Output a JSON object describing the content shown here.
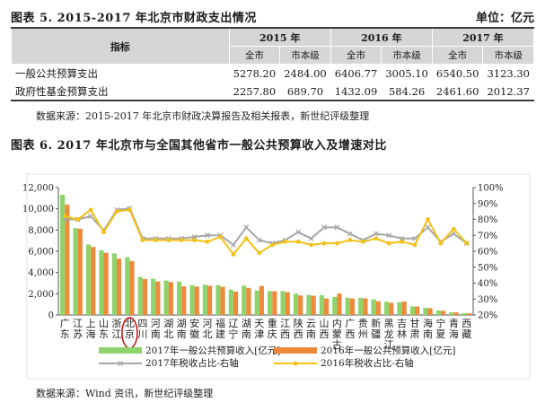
{
  "table1": {
    "title": "图表 5. 2015-2017 年北京市财政支出情况",
    "unit": "单位：亿元",
    "header_indicator": "指标",
    "years": [
      "2015 年",
      "2016 年",
      "2017 年"
    ],
    "sub_headers": [
      "全市",
      "市本级"
    ],
    "rows": [
      {
        "label": "一般公共预算支出",
        "values": [
          "5278.20",
          "2484.00",
          "6406.77",
          "3005.10",
          "6540.50",
          "3123.30"
        ]
      },
      {
        "label": "政府性基金预算支出",
        "values": [
          "2257.80",
          "689.70",
          "1432.09",
          "584.26",
          "2461.60",
          "2012.37"
        ]
      }
    ],
    "source": "数据来源：2015-2017 年北京市财政决算报告及相关报表，新世纪评级整理"
  },
  "figure6": {
    "title": "图表 6. 2017 年北京市与全国其他省市一般公共预算收入及增速对比",
    "source": "数据来源：Wind 资讯，新世纪评级整理"
  },
  "chart_data": {
    "type": "bar",
    "categories": [
      "广东",
      "江苏",
      "上海",
      "山东",
      "浙江",
      "北京",
      "四川",
      "河南",
      "湖北",
      "湖南",
      "安徽",
      "河北",
      "福建",
      "辽宁",
      "湖南",
      "天津",
      "重庆",
      "江西",
      "陕西",
      "云南",
      "山西",
      "内蒙古",
      "广西",
      "贵州",
      "新疆",
      "黑龙江",
      "吉林",
      "甘肃",
      "海南",
      "宁夏",
      "青海",
      "西藏"
    ],
    "category_chars": [
      [
        "广",
        "东"
      ],
      [
        "江",
        "苏"
      ],
      [
        "上",
        "海"
      ],
      [
        "山",
        "东"
      ],
      [
        "浙",
        "江"
      ],
      [
        "北",
        "京"
      ],
      [
        "四",
        "川"
      ],
      [
        "河",
        "南"
      ],
      [
        "湖",
        "北"
      ],
      [
        "湖",
        "南"
      ],
      [
        "安",
        "徽"
      ],
      [
        "河",
        "北"
      ],
      [
        "福",
        "建"
      ],
      [
        "辽",
        "宁"
      ],
      [
        "湖",
        "南"
      ],
      [
        "天",
        "津"
      ],
      [
        "重",
        "庆"
      ],
      [
        "江",
        "西"
      ],
      [
        "陕",
        "西"
      ],
      [
        "云",
        "南"
      ],
      [
        "山",
        "西"
      ],
      [
        "内",
        "蒙",
        "古"
      ],
      [
        "广",
        "西"
      ],
      [
        "贵",
        "州"
      ],
      [
        "新",
        "疆"
      ],
      [
        "黑",
        "龙",
        "江"
      ],
      [
        "吉",
        "林"
      ],
      [
        "甘",
        "肃"
      ],
      [
        "海",
        "南"
      ],
      [
        "宁",
        "夏"
      ],
      [
        "青",
        "海"
      ],
      [
        "西",
        "藏"
      ]
    ],
    "highlight_index": 5,
    "series": [
      {
        "name": "2017年一般公共预算收入[亿元]",
        "kind": "bar",
        "axis": "left",
        "color": "#8ed36b",
        "values": [
          11315,
          8172,
          6642,
          6098,
          5804,
          5431,
          3578,
          3407,
          3248,
          3152,
          2812,
          2849,
          2809,
          2393,
          2757,
          2310,
          2252,
          2247,
          2006,
          1886,
          1867,
          1703,
          1615,
          1613,
          1466,
          1243,
          1210,
          815,
          674,
          417,
          246,
          185
        ]
      },
      {
        "name": "2016年一般公共预算收入[亿元]",
        "kind": "bar",
        "axis": "left",
        "color": "#ee8a3b",
        "values": [
          10390,
          8121,
          6406,
          5860,
          5302,
          5081,
          3389,
          3153,
          3102,
          2697,
          2673,
          2750,
          2654,
          2200,
          2553,
          2723,
          2228,
          2151,
          1834,
          1812,
          1557,
          2016,
          1556,
          1561,
          1299,
          1148,
          1264,
          787,
          637,
          388,
          238,
          156
        ]
      },
      {
        "name": "2017年税收占比-右轴",
        "kind": "line",
        "axis": "right",
        "color": "#a6a6a6",
        "values": [
          80,
          80,
          82,
          73,
          86,
          87,
          68,
          68,
          68,
          68,
          69,
          70,
          70,
          64,
          75,
          67,
          65,
          67,
          72,
          68,
          75,
          75,
          71,
          67,
          71,
          70,
          68,
          68,
          75,
          66,
          71,
          65
        ]
      },
      {
        "name": "2016年税收占比-右轴",
        "kind": "line",
        "axis": "right",
        "color": "#f2c218",
        "values": [
          82,
          80,
          86,
          72,
          85,
          86,
          67,
          67,
          67,
          67,
          67,
          66,
          69,
          58,
          68,
          59,
          64,
          66,
          66,
          64,
          65,
          65,
          67,
          66,
          68,
          65,
          66,
          64,
          80,
          65,
          74,
          65
        ]
      }
    ],
    "y_left": {
      "min": 0,
      "max": 12000,
      "ticks": [
        "0",
        "2,000",
        "4,000",
        "6,000",
        "8,000",
        "10,000",
        "12,000"
      ]
    },
    "y_right": {
      "min": 20,
      "max": 100,
      "ticks": [
        "20%",
        "30%",
        "40%",
        "50%",
        "60%",
        "70%",
        "80%",
        "90%",
        "100%"
      ]
    },
    "grid": false,
    "legend_position": "bottom"
  }
}
